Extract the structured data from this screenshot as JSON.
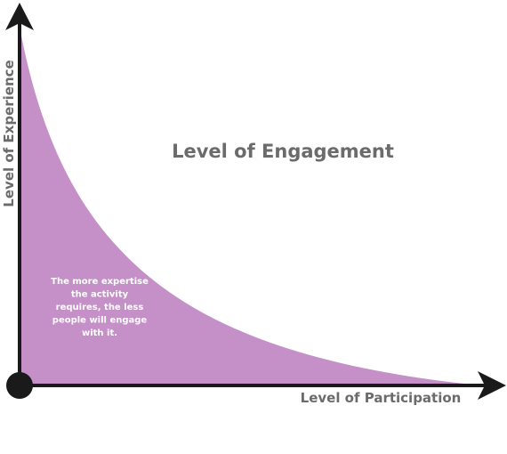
{
  "title": "Level of Engagement",
  "y_axis": {
    "label": "Level of Experience"
  },
  "x_axis": {
    "label": "Level of Participation"
  },
  "annotation": {
    "lines": [
      "The more expertise",
      "the activity",
      "requires, the less",
      "people will engage",
      "with it."
    ]
  }
}
